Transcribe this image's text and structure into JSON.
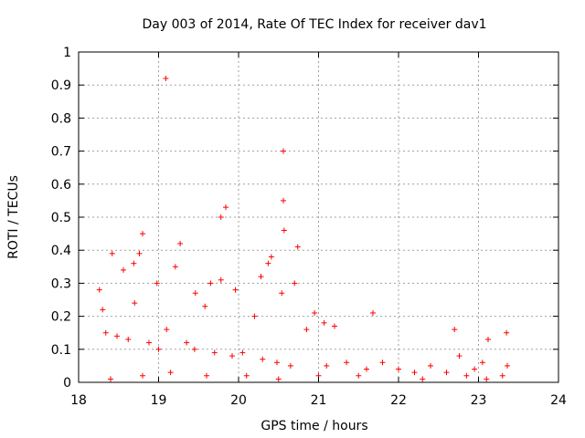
{
  "chart_data": {
    "type": "scatter",
    "title": "Day 003 of 2014, Rate Of TEC Index for receiver dav1",
    "xlabel": "GPS time / hours",
    "ylabel": "ROTI / TECUs",
    "xlim": [
      18,
      24
    ],
    "ylim": [
      0,
      1
    ],
    "xticks": [
      "18",
      "19",
      "20",
      "21",
      "22",
      "23",
      "24"
    ],
    "yticks": [
      "0",
      "0.1",
      "0.2",
      "0.3",
      "0.4",
      "0.5",
      "0.6",
      "0.7",
      "0.8",
      "0.9",
      "1"
    ],
    "grid": true,
    "marker": "+",
    "color": "#ff0000",
    "series": [
      {
        "name": "ROTI",
        "points": [
          [
            19.09,
            0.92
          ],
          [
            20.56,
            0.7
          ],
          [
            20.56,
            0.55
          ],
          [
            19.84,
            0.53
          ],
          [
            19.78,
            0.5
          ],
          [
            20.57,
            0.46
          ],
          [
            18.8,
            0.45
          ],
          [
            19.27,
            0.42
          ],
          [
            20.74,
            0.41
          ],
          [
            18.42,
            0.39
          ],
          [
            18.76,
            0.39
          ],
          [
            20.41,
            0.38
          ],
          [
            18.69,
            0.36
          ],
          [
            19.21,
            0.35
          ],
          [
            18.56,
            0.34
          ],
          [
            20.37,
            0.36
          ],
          [
            20.28,
            0.32
          ],
          [
            19.78,
            0.31
          ],
          [
            18.26,
            0.28
          ],
          [
            19.65,
            0.3
          ],
          [
            19.96,
            0.28
          ],
          [
            20.54,
            0.27
          ],
          [
            18.98,
            0.3
          ],
          [
            19.46,
            0.27
          ],
          [
            20.7,
            0.3
          ],
          [
            18.3,
            0.22
          ],
          [
            19.58,
            0.23
          ],
          [
            20.95,
            0.21
          ],
          [
            21.68,
            0.21
          ],
          [
            18.7,
            0.24
          ],
          [
            20.2,
            0.2
          ],
          [
            21.07,
            0.18
          ],
          [
            21.2,
            0.17
          ],
          [
            20.85,
            0.16
          ],
          [
            19.1,
            0.16
          ],
          [
            18.34,
            0.15
          ],
          [
            18.48,
            0.14
          ],
          [
            18.62,
            0.13
          ],
          [
            18.88,
            0.12
          ],
          [
            19.0,
            0.1
          ],
          [
            19.35,
            0.12
          ],
          [
            19.45,
            0.1
          ],
          [
            19.7,
            0.09
          ],
          [
            19.92,
            0.08
          ],
          [
            20.05,
            0.09
          ],
          [
            20.3,
            0.07
          ],
          [
            20.48,
            0.06
          ],
          [
            20.65,
            0.05
          ],
          [
            21.1,
            0.05
          ],
          [
            21.35,
            0.06
          ],
          [
            21.6,
            0.04
          ],
          [
            21.8,
            0.06
          ],
          [
            22.0,
            0.04
          ],
          [
            22.2,
            0.03
          ],
          [
            22.4,
            0.05
          ],
          [
            22.6,
            0.03
          ],
          [
            22.7,
            0.16
          ],
          [
            22.76,
            0.08
          ],
          [
            22.95,
            0.04
          ],
          [
            23.05,
            0.06
          ],
          [
            23.12,
            0.13
          ],
          [
            23.35,
            0.15
          ],
          [
            23.36,
            0.05
          ],
          [
            23.3,
            0.02
          ],
          [
            18.4,
            0.01
          ],
          [
            18.8,
            0.02
          ],
          [
            19.15,
            0.03
          ],
          [
            19.6,
            0.02
          ],
          [
            20.1,
            0.02
          ],
          [
            20.5,
            0.01
          ],
          [
            21.0,
            0.02
          ],
          [
            21.5,
            0.02
          ],
          [
            22.3,
            0.01
          ],
          [
            22.85,
            0.02
          ],
          [
            23.1,
            0.01
          ]
        ]
      }
    ]
  }
}
